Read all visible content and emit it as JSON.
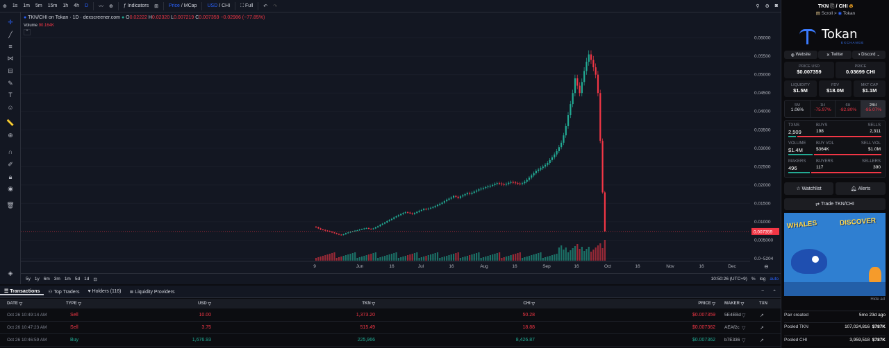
{
  "topbar": {
    "timeframes": [
      "1s",
      "1m",
      "5m",
      "15m",
      "1h",
      "4h",
      "D"
    ],
    "indicators": "Indicators",
    "price_toggle": "Price",
    "mcap_toggle": "MCap",
    "usd_toggle": "USD",
    "chi_toggle": "CHI",
    "full": "Full"
  },
  "chart": {
    "legend_title": "TKN/CHI on Tokan · 1D · dexscreener.com",
    "o_label": "O",
    "o_val": "0.02222",
    "h_label": "H",
    "h_val": "0.02320",
    "l_label": "L",
    "l_val": "0.007219",
    "c_label": "C",
    "c_val": "0.007359",
    "change": "−0.02986 (−77.85%)",
    "volume_label": "Volume",
    "volume_val": "90.164K",
    "current_price_tag": "0.007359"
  },
  "chart_data": {
    "type": "candlestick",
    "y_ticks": [
      "0.06000",
      "0.05500",
      "0.05000",
      "0.04500",
      "0.04000",
      "0.03500",
      "0.03000",
      "0.02500",
      "0.02000",
      "0.01500",
      "0.01000",
      "0.005000",
      "0.0−5204"
    ],
    "x_ticks": [
      "9",
      "Jun",
      "16",
      "Jul",
      "16",
      "Aug",
      "16",
      "Sep",
      "16",
      "Oct",
      "16",
      "Nov",
      "16",
      "Dec"
    ],
    "ylim": [
      0,
      0.062
    ],
    "close_series": [
      0.0085,
      0.0082,
      0.0079,
      0.0078,
      0.0076,
      0.0075,
      0.0073,
      0.0071,
      0.0069,
      0.0067,
      0.0065,
      0.0064,
      0.0066,
      0.0069,
      0.0071,
      0.0073,
      0.0074,
      0.0076,
      0.0077,
      0.0079,
      0.008,
      0.0082,
      0.0083,
      0.0081,
      0.008,
      0.0082,
      0.0085,
      0.0088,
      0.0092,
      0.0095,
      0.0098,
      0.0102,
      0.0105,
      0.0108,
      0.0112,
      0.0115,
      0.0118,
      0.0121,
      0.0124,
      0.0126,
      0.0125,
      0.0123,
      0.0121,
      0.0124,
      0.0127,
      0.013,
      0.0132,
      0.0135,
      0.0134,
      0.0136,
      0.0138,
      0.014,
      0.0143,
      0.0146,
      0.0149,
      0.0152,
      0.0156,
      0.016,
      0.0163,
      0.0166,
      0.017,
      0.0168,
      0.0165,
      0.0169,
      0.0172,
      0.0175,
      0.0178,
      0.0176,
      0.0179,
      0.0182,
      0.0185,
      0.0188,
      0.019,
      0.0192,
      0.0194,
      0.0196,
      0.0198,
      0.02,
      0.0203,
      0.0205,
      0.0204,
      0.0202,
      0.0201,
      0.0203,
      0.0206,
      0.0208,
      0.0207,
      0.0205,
      0.0204,
      0.0203,
      0.0205,
      0.0209,
      0.0214,
      0.022,
      0.0226,
      0.0232,
      0.0238,
      0.0242,
      0.0246,
      0.025,
      0.0255,
      0.026,
      0.0268,
      0.0275,
      0.0283,
      0.0292,
      0.0303,
      0.0315,
      0.0335,
      0.036,
      0.039,
      0.042,
      0.045,
      0.049,
      0.047,
      0.045,
      0.048,
      0.051,
      0.0535,
      0.0555,
      0.054,
      0.052,
      0.05,
      0.045,
      0.032,
      0.018,
      0.0074
    ],
    "price_now": 0.007359,
    "bottom_ranges": [
      "5y",
      "1y",
      "6m",
      "3m",
      "1m",
      "5d",
      "1d"
    ],
    "time_display": "10:50:26 (UTC+9)",
    "scale_options": [
      "%",
      "log",
      "auto"
    ]
  },
  "tabs": [
    {
      "label": "Transactions"
    },
    {
      "label": "Top Traders"
    },
    {
      "label": "Holders (116)"
    },
    {
      "label": "Liquidity Providers"
    }
  ],
  "table": {
    "headers": {
      "date": "DATE",
      "type": "TYPE",
      "usd": "USD",
      "tkn": "TKN",
      "chi": "CHI",
      "price": "PRICE",
      "maker": "MAKER",
      "txn": "TXN"
    },
    "rows": [
      {
        "date": "Oct 26 10:49:14 AM",
        "type": "Sell",
        "usd": "10.00",
        "tkn": "1,373.20",
        "chi": "50.28",
        "price": "$0.007359",
        "maker": "5E4EBd",
        "side": "sell"
      },
      {
        "date": "Oct 26 10:47:23 AM",
        "type": "Sell",
        "usd": "3.75",
        "tkn": "515.49",
        "chi": "18.88",
        "price": "$0.007362",
        "maker": "AEAf2c",
        "side": "sell"
      },
      {
        "date": "Oct 26 10:46:59 AM",
        "type": "Buy",
        "usd": "1,676.93",
        "tkn": "225,966",
        "chi": "8,426.87",
        "price": "$0.007362",
        "maker": "b7E336",
        "side": "buy"
      }
    ]
  },
  "sidebar": {
    "pair_base": "TKN",
    "pair_quote": "CHI",
    "chain": "Scroll",
    "dex": "Tokan",
    "logo_text": "Tokan",
    "logo_sub": "EXCHANGE",
    "links": [
      "Website",
      "Twitter",
      "Discord"
    ],
    "price_usd_label": "PRICE USD",
    "price_usd": "$0.007359",
    "price_label": "PRICE",
    "price_chi": "0.03699 CHI",
    "liquidity_label": "LIQUIDITY",
    "liquidity": "$1.5M",
    "fdv_label": "FDV",
    "fdv": "$18.0M",
    "mktcap_label": "MKT CAP",
    "mktcap": "$1.1M",
    "changes": [
      {
        "label": "5M",
        "value": "1.06%",
        "dir": "up"
      },
      {
        "label": "1H",
        "value": "-75.97%",
        "dir": "down"
      },
      {
        "label": "6H",
        "value": "-82.80%",
        "dir": "down"
      },
      {
        "label": "24H",
        "value": "-85.07%",
        "dir": "down"
      }
    ],
    "txns_label": "TXNS",
    "txns": "2,509",
    "buys_label": "BUYS",
    "buys": "198",
    "sells_label": "SELLS",
    "sells": "2,311",
    "volume_label": "VOLUME",
    "volume": "$1.4M",
    "buyvol_label": "BUY VOL",
    "buyvol": "$364K",
    "sellvol_label": "SELL VOL",
    "sellvol": "$1.0M",
    "makers_label": "MAKERS",
    "makers": "496",
    "buyers_label": "BUYERS",
    "buyers": "117",
    "sellers_label": "SELLERS",
    "sellers": "390",
    "buys_fraction": 0.08,
    "buyvol_fraction": 0.26,
    "buyers_fraction": 0.23,
    "watchlist": "Watchlist",
    "alerts": "Alerts",
    "trade": "Trade TKN/CHI",
    "ad_text1": "WHALES",
    "ad_text2": "DISCOVER",
    "hide_ad": "Hide ad",
    "pair_created_label": "Pair created",
    "pair_created": "5mo 23d ago",
    "pooled_tkn_label": "Pooled TKN",
    "pooled_tkn": "107,024,816",
    "pooled_tkn_usd": "$787K",
    "pooled_chi_label": "Pooled CHI",
    "pooled_chi": "3,959,518",
    "pooled_chi_usd": "$787K"
  },
  "colors": {
    "up": "#22ab94",
    "down": "#f23645",
    "accent": "#2962ff",
    "bg": "#131722"
  }
}
